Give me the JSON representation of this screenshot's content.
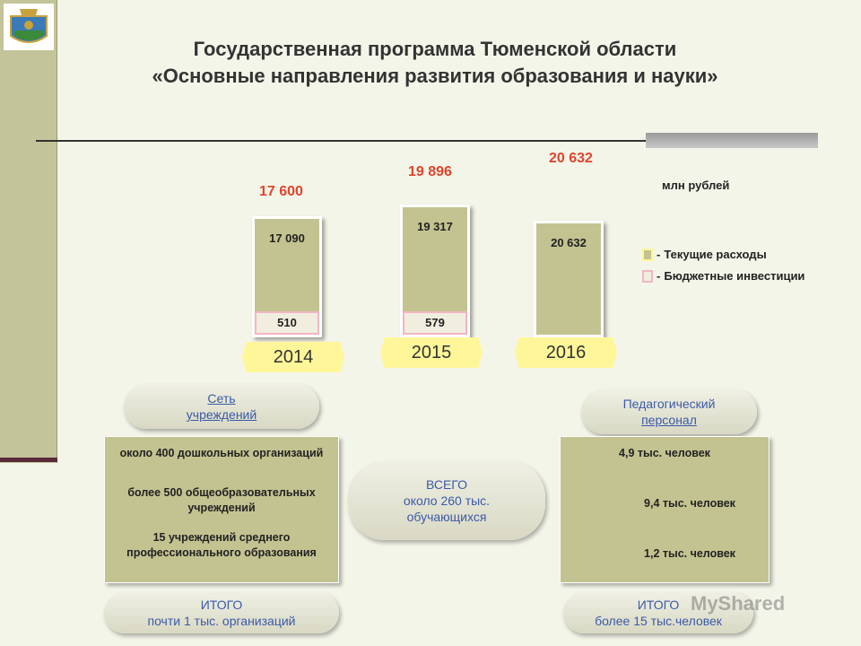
{
  "header": {
    "line1": "Государственная программа Тюменской области",
    "line2": "«Основные направления развития образования и науки»"
  },
  "chart_data": {
    "type": "bar",
    "stacked": true,
    "unit": "млн рублей",
    "categories": [
      "2014",
      "2015",
      "2016"
    ],
    "totals": [
      "17 600",
      "19 896",
      "20 632"
    ],
    "series": [
      {
        "name": "Текущие расходы",
        "color": "#c3c391",
        "values": [
          17090,
          19317,
          20632
        ],
        "labels": [
          "17 090",
          "19 317",
          "20 632"
        ]
      },
      {
        "name": "Бюджетные инвестиции",
        "color": "#f2b6c4",
        "values": [
          510,
          579,
          0
        ],
        "labels": [
          "510",
          "579",
          ""
        ]
      }
    ],
    "legend": [
      {
        "prefix": "- ",
        "label": "Текущие расходы"
      },
      {
        "prefix": "- ",
        "label": "Бюджетные инвестиции"
      }
    ],
    "legend_position": "right"
  },
  "institutions": {
    "pill_line1": "Сеть",
    "pill_line2": "учреждений",
    "items": [
      "около 400 дошкольных организаций",
      "более 500 общеобразовательных учреждений",
      "15 учреждений среднего профессионального образования"
    ],
    "total_line1": "ИТОГО",
    "total_line2": "почти 1 тыс. организаций"
  },
  "students": {
    "line1": "ВСЕГО",
    "line2": "около 260 тыс.",
    "line3": "обучающихся"
  },
  "staff": {
    "pill_line1": "Педагогический",
    "pill_line2": "персонал",
    "items": [
      "4,9 тыс. человек",
      "9,4 тыс. человек",
      "1,2 тыс. человек"
    ],
    "total_line1": "ИТОГО",
    "total_line2": "более 15 тыс.человек"
  },
  "watermark": "MyShared",
  "colors": {
    "accent_total": "#e0442c",
    "pill_text": "#3a5aa8",
    "year_badge": "#fff69a"
  }
}
